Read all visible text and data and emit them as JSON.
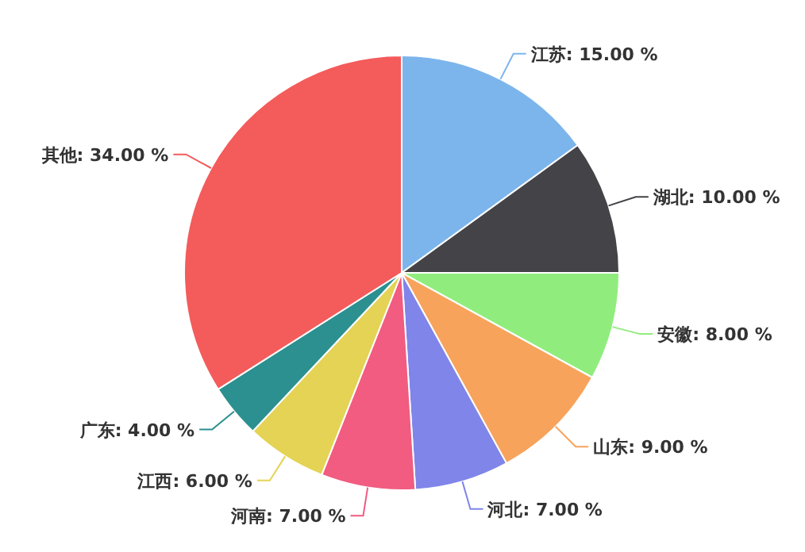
{
  "chart_data": {
    "type": "pie",
    "categories": [
      "江苏",
      "湖北",
      "安徽",
      "山东",
      "河北",
      "河南",
      "江西",
      "广东",
      "其他"
    ],
    "values": [
      15,
      10,
      8,
      9,
      7,
      7,
      6,
      4,
      34
    ],
    "value_labels": [
      "15.00 %",
      "10.00 %",
      "8.00 %",
      "9.00 %",
      "7.00 %",
      "7.00 %",
      "6.00 %",
      "4.00 %",
      "34.00 %"
    ],
    "colors": [
      "#7cb5ec",
      "#434348",
      "#90ed7d",
      "#f7a35c",
      "#8085e9",
      "#f15c80",
      "#e4d354",
      "#2b908f",
      "#f45b5b"
    ],
    "legend": false
  }
}
